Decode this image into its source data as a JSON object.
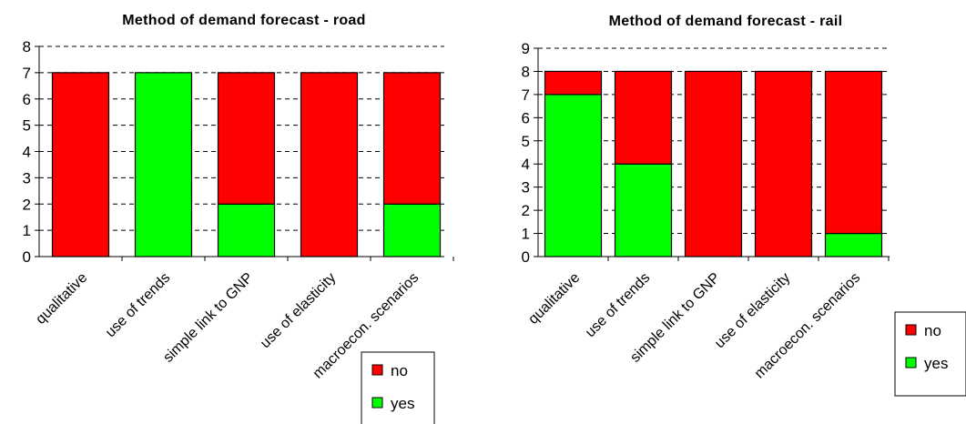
{
  "colors": {
    "no": "#FF0000",
    "yes": "#00FF00",
    "frame": "#000000",
    "grid": "#000000"
  },
  "chart_data": [
    {
      "type": "bar",
      "stacked": true,
      "title": "Method of demand forecast - road",
      "categories": [
        "qualitative",
        "use of trends",
        "simple link to GNP",
        "use of elasticity",
        "macroecon. scenarios"
      ],
      "series": [
        {
          "name": "yes",
          "values": [
            0,
            7,
            2,
            0,
            2
          ]
        },
        {
          "name": "no",
          "values": [
            7,
            0,
            5,
            7,
            5
          ]
        }
      ],
      "ylim": [
        0,
        8
      ],
      "yticks": [
        "0",
        "1",
        "2",
        "3",
        "4",
        "5",
        "6",
        "7",
        "8"
      ],
      "grid": true,
      "legend": {
        "position": "bottom-right",
        "items": [
          "no",
          "yes"
        ]
      }
    },
    {
      "type": "bar",
      "stacked": true,
      "title": "Method of demand forecast - rail",
      "categories": [
        "qualitative",
        "use of trends",
        "simple link to GNP",
        "use of elasticity",
        "macroecon. scenarios"
      ],
      "series": [
        {
          "name": "yes",
          "values": [
            7,
            4,
            0,
            0,
            1
          ]
        },
        {
          "name": "no",
          "values": [
            1,
            4,
            8,
            8,
            7
          ]
        }
      ],
      "ylim": [
        0,
        9
      ],
      "yticks": [
        "0",
        "1",
        "2",
        "3",
        "4",
        "5",
        "6",
        "7",
        "8",
        "9"
      ],
      "grid": true,
      "legend": {
        "position": "right",
        "items": [
          "no",
          "yes"
        ]
      }
    }
  ]
}
